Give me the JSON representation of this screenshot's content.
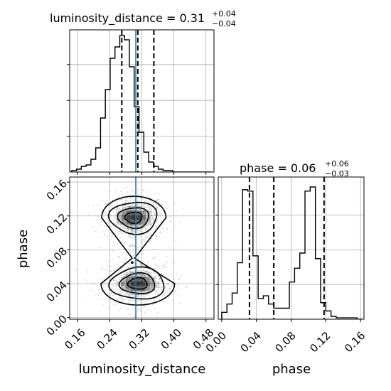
{
  "chart_data": {
    "type": "corner",
    "parameters": [
      "luminosity_distance",
      "phase"
    ],
    "truths": {
      "luminosity_distance": 0.31,
      "phase": null
    },
    "colors": {
      "hist": "#000000",
      "truth": "#1f77b4",
      "quantile": "#000000",
      "grid": "#b0b0b0",
      "density": "#000000"
    },
    "panels": [
      {
        "name": "hist-luminosity_distance",
        "type": "histogram",
        "title_prefix": "luminosity_distance = ",
        "median": "0.31",
        "err_plus": "+0.04",
        "err_minus": "−0.04",
        "xlim": [
          0.14,
          0.5
        ],
        "bins": [
          0.145,
          0.157,
          0.169,
          0.181,
          0.193,
          0.205,
          0.217,
          0.229,
          0.241,
          0.253,
          0.265,
          0.277,
          0.289,
          0.301,
          0.313,
          0.325,
          0.337,
          0.349,
          0.361,
          0.373,
          0.385,
          0.397,
          0.409,
          0.421,
          0.433,
          0.445,
          0.457,
          0.469,
          0.481,
          0.493
        ],
        "counts": [
          1,
          2,
          4,
          5,
          9,
          17,
          38,
          58,
          80,
          88,
          96,
          93,
          74,
          46,
          28,
          14,
          7,
          4,
          2,
          1,
          1,
          0,
          0,
          0,
          0,
          0,
          0,
          0,
          0
        ],
        "quantiles": [
          0.27,
          0.31,
          0.35
        ],
        "truth": 0.305,
        "grid": true,
        "ytick_labels_hidden": true,
        "xtick_labels_hidden": true
      },
      {
        "name": "hist-phase",
        "type": "histogram",
        "title_prefix": "phase = ",
        "median": "0.06",
        "err_plus": "+0.06",
        "err_minus": "−0.03",
        "xlim": [
          -0.004,
          0.164
        ],
        "bins": [
          0.0,
          0.006,
          0.012,
          0.018,
          0.024,
          0.03,
          0.036,
          0.042,
          0.048,
          0.054,
          0.06,
          0.066,
          0.072,
          0.078,
          0.084,
          0.09,
          0.096,
          0.102,
          0.108,
          0.114,
          0.12,
          0.126,
          0.132,
          0.138,
          0.144,
          0.15,
          0.156,
          0.162
        ],
        "counts": [
          5,
          11,
          19,
          41,
          94,
          93,
          46,
          15,
          17,
          11,
          8,
          8,
          8,
          27,
          37,
          48,
          93,
          96,
          44,
          12,
          6,
          2,
          1,
          1,
          1,
          1,
          0
        ],
        "quantiles": [
          0.032,
          0.06,
          0.118
        ],
        "grid": true,
        "xticks": [
          0.0,
          0.04,
          0.08,
          0.12,
          0.16
        ],
        "xtick_labels": [
          "0.00",
          "0.04",
          "0.08",
          "0.12",
          "0.16"
        ],
        "xlabel": "phase",
        "ytick_labels_hidden": true
      },
      {
        "name": "contour-phase-vs-luminosity_distance",
        "type": "2d-density",
        "xlim": [
          0.14,
          0.5
        ],
        "ylim": [
          -0.002,
          0.166
        ],
        "xticks": [
          0.16,
          0.24,
          0.32,
          0.4,
          0.48
        ],
        "xtick_labels": [
          "0.16",
          "0.24",
          "0.32",
          "0.40",
          "0.48"
        ],
        "yticks": [
          0.0,
          0.04,
          0.08,
          0.12,
          0.16
        ],
        "ytick_labels": [
          "0.00",
          "0.04",
          "0.08",
          "0.12",
          "0.16"
        ],
        "xlabel": "luminosity_distance",
        "ylabel": "phase",
        "truth": 0.305,
        "grid": true,
        "modes": [
          {
            "x": 0.3,
            "y": 0.118,
            "sx": 0.035,
            "sy": 0.011
          },
          {
            "x": 0.31,
            "y": 0.04,
            "sx": 0.04,
            "sy": 0.011
          }
        ],
        "peak_point": [
          0.296,
          0.065
        ],
        "contour_levels": [
          0.1,
          0.3,
          0.6,
          0.85
        ]
      }
    ]
  }
}
